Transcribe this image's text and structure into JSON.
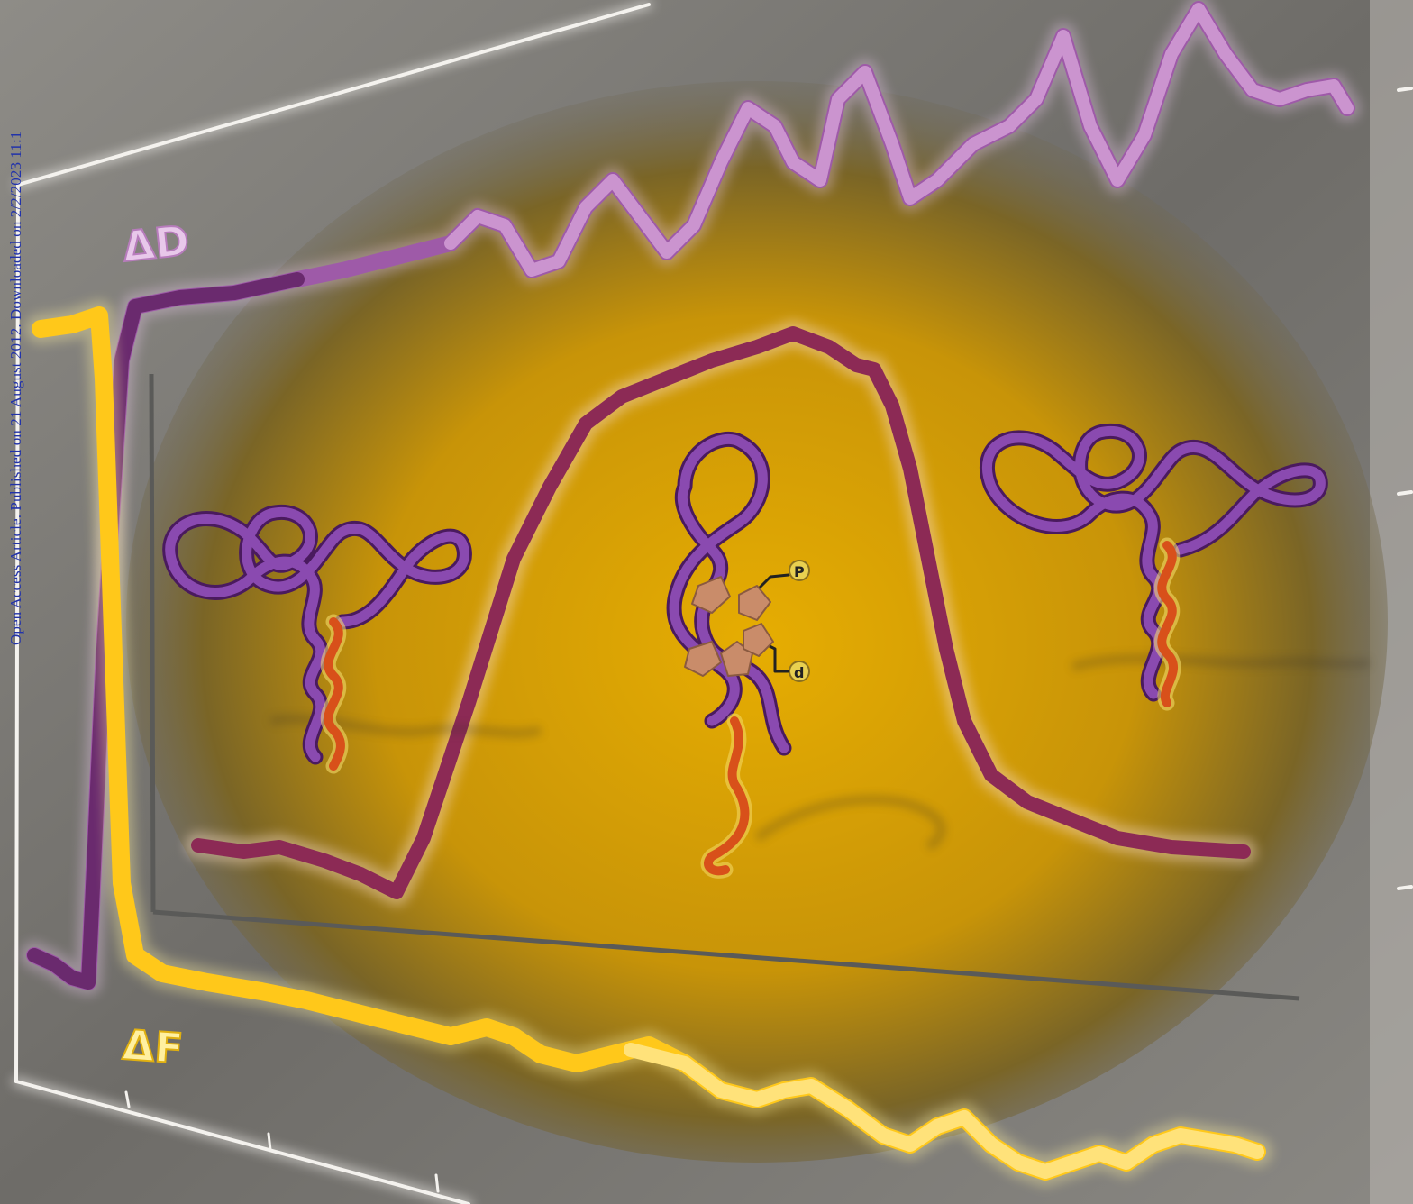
{
  "sidebar_text": "Open Access Article. Published on 21 August 2012. Downloaded on 2/2/2023 11:1",
  "labels": {
    "delta_d": "ΔD",
    "delta_f": "ΔF",
    "phosphate_1": "P",
    "phosphate_2": "d"
  },
  "colors": {
    "background_gray": "#7d7b76",
    "glow_yellow": "#e0a800",
    "delta_d_trace": "#b77cbc",
    "delta_d_trace_dark": "#6a2a6e",
    "delta_f_trace": "#ffd21a",
    "inner_curve": "#8c2a55",
    "rna_purple": "#7a3a9a",
    "rna_orange": "#e05a1a",
    "base_tan": "#c98c6a",
    "sidebar_link": "#2233aa"
  },
  "icons": [
    "rna-hairpin-left",
    "rna-folded-center",
    "rna-hairpin-right",
    "phosphate-icon"
  ]
}
